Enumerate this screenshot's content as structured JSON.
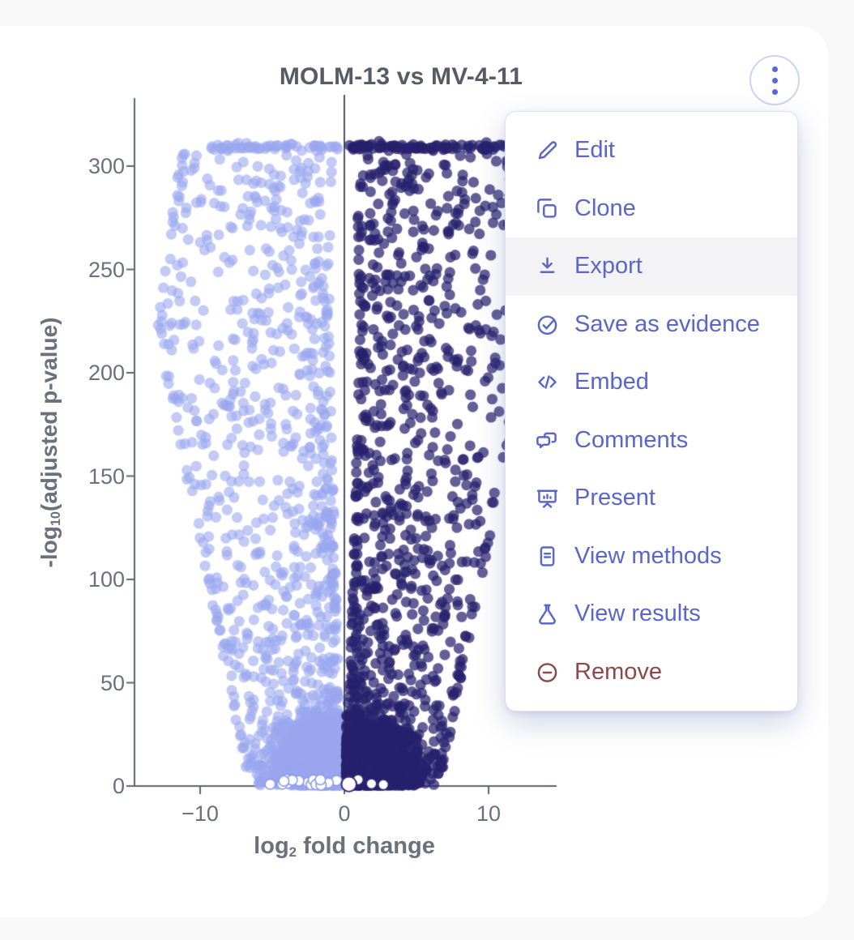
{
  "page": {
    "background": "#F8F8F8",
    "card_background": "#FFFFFF"
  },
  "chart_data": {
    "type": "scatter",
    "variant": "volcano-plot",
    "title": "MOLM-13 vs MV-4-11",
    "xlabel": {
      "prefix": "log",
      "sub": "2",
      "suffix": " fold change"
    },
    "ylabel": {
      "prefix": "-log",
      "sub": "10",
      "suffix": "(adjusted p-value)"
    },
    "xlim": [
      -14.5,
      14.7
    ],
    "ylim": [
      0,
      332
    ],
    "x_ticks": [
      {
        "v": -10,
        "label": "−10"
      },
      {
        "v": 0,
        "label": "0"
      },
      {
        "v": 10,
        "label": "10"
      }
    ],
    "y_ticks": [
      {
        "v": 0,
        "label": "0"
      },
      {
        "v": 50,
        "label": "50"
      },
      {
        "v": 100,
        "label": "100"
      },
      {
        "v": 150,
        "label": "150"
      },
      {
        "v": 200,
        "label": "200"
      },
      {
        "v": 250,
        "label": "250"
      },
      {
        "v": 300,
        "label": "300"
      }
    ],
    "grid": false,
    "legend": "none",
    "zero_line_x": 0,
    "pvalue_cap": 310,
    "axis_color": "#5F646E",
    "zero_line_color": "#4F545E",
    "tick_text_color": "#6A707C",
    "series": [
      {
        "name": "negative fold change (light periwinkle, x < 0)",
        "color": "rgba(154,166,238,0.6)",
        "edge_color": "#8F9BE8",
        "approx_points": 3850,
        "x_range": [
          -13.6,
          -0.1
        ],
        "y_range": [
          0,
          310
        ],
        "capped_row_y": 310
      },
      {
        "name": "positive fold change (dark indigo, x > 0)",
        "color": "rgba(40,33,110,0.72)",
        "edge_color": "#2F296F",
        "approx_points": 4100,
        "x_range": [
          0.1,
          13.5
        ],
        "y_range": [
          0,
          310
        ],
        "capped_row_y": 310
      }
    ],
    "white_outlined_points_near_zero": true,
    "generation": {
      "seed": 987654321,
      "dot_radius": 6.6,
      "sides": [
        {
          "sign": -1,
          "fill": "rgba(154,166,238,0.6)",
          "edge": "#8F9BE8",
          "bottom_n": 2900,
          "wing_n": 880,
          "cap_n": 58,
          "subcap_n": 9,
          "cap_x_max": 8.9
        },
        {
          "sign": 1,
          "fill": "rgba(40,33,110,0.72)",
          "edge": "#2F296F",
          "bottom_n": 3050,
          "wing_n": 920,
          "cap_n": 105,
          "subcap_n": 10,
          "cap_x_max": 12.4
        }
      ],
      "white_rings": {
        "n": 26,
        "x_min": -5.2,
        "x_max": 3.3,
        "v_min": 0.45,
        "v_max": 3.6,
        "big": {
          "x": 0.32,
          "v": 0.9,
          "r": 9.2
        }
      }
    }
  },
  "kebab": {
    "name": "more-options",
    "dot_color": "#5767D6",
    "border_color": "#CBD4F3"
  },
  "menu": {
    "accent_color": "#5A66C9",
    "danger_color": "#8D4849",
    "highlight_bg": "#F3F3F6",
    "items": [
      {
        "label": "Edit",
        "icon": "edit-icon"
      },
      {
        "label": "Clone",
        "icon": "clone-icon"
      },
      {
        "label": "Export",
        "icon": "export-icon",
        "highlighted": true
      },
      {
        "label": "Save as evidence",
        "icon": "check-circle-icon"
      },
      {
        "label": "Embed",
        "icon": "code-icon"
      },
      {
        "label": "Comments",
        "icon": "comments-icon"
      },
      {
        "label": "Present",
        "icon": "present-icon"
      },
      {
        "label": "View methods",
        "icon": "document-icon"
      },
      {
        "label": "View results",
        "icon": "flask-icon"
      },
      {
        "label": "Remove",
        "icon": "remove-circle-icon",
        "danger": true
      }
    ]
  }
}
